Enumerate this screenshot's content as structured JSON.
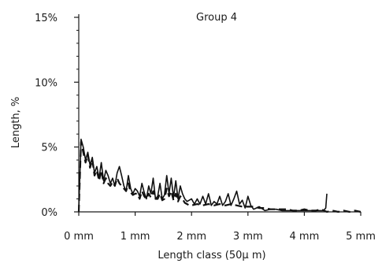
{
  "chart_data": {
    "type": "line",
    "title": "Group 4",
    "xlabel": "Length class (50μ m)",
    "ylabel": "Length, %",
    "xlim": [
      0,
      5
    ],
    "ylim": [
      0,
      15
    ],
    "x_ticks": [
      {
        "value": 0,
        "label": "0 mm"
      },
      {
        "value": 1,
        "label": "1 mm"
      },
      {
        "value": 2,
        "label": "2 mm"
      },
      {
        "value": 3,
        "label": "3 mm"
      },
      {
        "value": 4,
        "label": "4 mm"
      },
      {
        "value": 5,
        "label": "5 mm"
      }
    ],
    "y_ticks": [
      {
        "value": 0,
        "label": "0%"
      },
      {
        "value": 5,
        "label": "5%"
      },
      {
        "value": 10,
        "label": "10%"
      },
      {
        "value": 15,
        "label": "15%"
      }
    ],
    "minor_y_ticks": [
      1,
      2,
      3,
      4,
      6,
      7,
      8,
      9,
      11,
      12,
      13,
      14
    ],
    "grid": false,
    "legend": false,
    "series": [
      {
        "style": "solid",
        "x": [
          0.0,
          0.04,
          0.08,
          0.12,
          0.16,
          0.2,
          0.24,
          0.28,
          0.32,
          0.36,
          0.4,
          0.44,
          0.48,
          0.52,
          0.56,
          0.6,
          0.64,
          0.68,
          0.72,
          0.76,
          0.8,
          0.84,
          0.88,
          0.92,
          0.96,
          1.0,
          1.04,
          1.08,
          1.12,
          1.16,
          1.2,
          1.24,
          1.28,
          1.32,
          1.36,
          1.4,
          1.44,
          1.48,
          1.52,
          1.56,
          1.6,
          1.64,
          1.68,
          1.72,
          1.76,
          1.8,
          1.84,
          1.88,
          1.92,
          1.96,
          2.0,
          2.05,
          2.1,
          2.15,
          2.2,
          2.25,
          2.3,
          2.35,
          2.4,
          2.45,
          2.5,
          2.55,
          2.6,
          2.65,
          2.7,
          2.75,
          2.8,
          2.85,
          2.9,
          2.95,
          3.0,
          3.05,
          3.1,
          3.15,
          3.2,
          3.3,
          3.4,
          3.5,
          3.6,
          3.7,
          3.8,
          3.9,
          4.0,
          4.1,
          4.2,
          4.3,
          4.34,
          4.38,
          4.4
        ],
        "y": [
          0.2,
          5.6,
          5.0,
          4.0,
          4.6,
          3.6,
          4.2,
          3.0,
          3.5,
          2.6,
          3.8,
          2.4,
          3.2,
          2.8,
          2.2,
          2.6,
          2.0,
          3.0,
          3.5,
          2.8,
          2.0,
          1.6,
          2.8,
          1.8,
          1.4,
          1.8,
          1.6,
          1.2,
          2.2,
          1.5,
          1.0,
          2.0,
          1.4,
          2.6,
          1.0,
          1.2,
          2.2,
          1.0,
          1.3,
          2.8,
          1.4,
          2.6,
          1.1,
          2.4,
          1.0,
          2.0,
          1.4,
          1.0,
          0.8,
          0.9,
          1.0,
          0.6,
          1.0,
          0.6,
          1.2,
          0.6,
          1.4,
          0.5,
          0.8,
          0.6,
          1.2,
          0.5,
          0.8,
          1.4,
          0.5,
          1.0,
          1.6,
          0.6,
          0.9,
          0.3,
          1.2,
          0.5,
          0.2,
          0.3,
          0.4,
          0.1,
          0.2,
          0.2,
          0.1,
          0.1,
          0.1,
          0.1,
          0.1,
          0.1,
          0.1,
          0.1,
          0.1,
          0.3,
          1.4
        ]
      },
      {
        "style": "dashed",
        "x": [
          0.0,
          0.04,
          0.08,
          0.12,
          0.16,
          0.2,
          0.24,
          0.28,
          0.32,
          0.36,
          0.4,
          0.44,
          0.48,
          0.52,
          0.56,
          0.6,
          0.64,
          0.68,
          0.72,
          0.76,
          0.8,
          0.84,
          0.88,
          0.92,
          0.96,
          1.0,
          1.04,
          1.08,
          1.12,
          1.16,
          1.2,
          1.24,
          1.28,
          1.32,
          1.36,
          1.4,
          1.44,
          1.48,
          1.52,
          1.56,
          1.6,
          1.64,
          1.68,
          1.72,
          1.76,
          1.8,
          1.84,
          1.88,
          1.92,
          1.96,
          2.0,
          2.1,
          2.2,
          2.3,
          2.4,
          2.5,
          2.6,
          2.7,
          2.8,
          2.9,
          3.0,
          3.1,
          3.2,
          3.3,
          3.4,
          3.5,
          3.6,
          3.7,
          3.8,
          3.9,
          4.0,
          4.1,
          4.2,
          4.3,
          4.4,
          4.5,
          4.6,
          4.7,
          4.8,
          4.9,
          5.0
        ],
        "y": [
          0.0,
          5.4,
          4.6,
          3.8,
          4.4,
          3.4,
          4.0,
          2.8,
          3.2,
          2.4,
          3.2,
          2.2,
          2.6,
          2.2,
          2.0,
          2.3,
          2.0,
          2.6,
          2.2,
          2.0,
          1.8,
          1.6,
          2.2,
          1.5,
          1.3,
          1.4,
          1.4,
          1.0,
          1.6,
          1.2,
          1.0,
          1.4,
          1.1,
          1.6,
          1.0,
          1.0,
          1.4,
          0.9,
          1.0,
          1.8,
          1.2,
          1.6,
          0.9,
          1.4,
          0.8,
          1.2,
          1.0,
          0.7,
          0.6,
          0.5,
          0.5,
          0.6,
          0.5,
          0.6,
          0.5,
          0.6,
          0.5,
          0.6,
          0.5,
          0.4,
          0.4,
          0.4,
          0.3,
          0.3,
          0.2,
          0.2,
          0.2,
          0.2,
          0.1,
          0.1,
          0.2,
          0.1,
          0.1,
          0.2,
          0.0,
          0.1,
          0.0,
          0.1,
          0.0,
          0.1,
          0.0
        ]
      }
    ]
  }
}
